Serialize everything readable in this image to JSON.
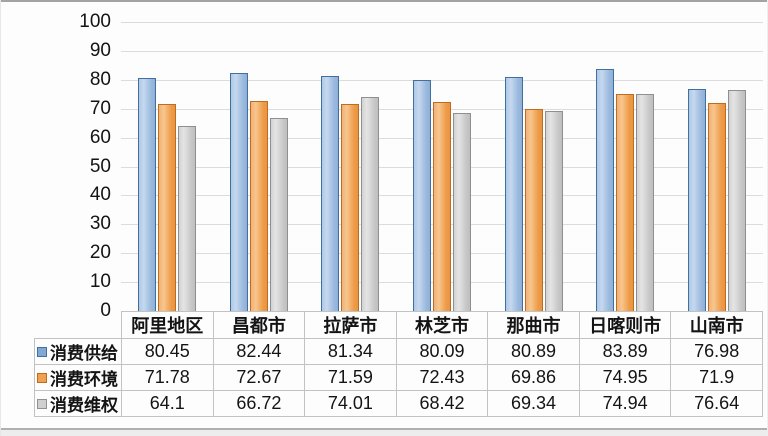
{
  "chart_data": {
    "type": "bar",
    "title": "",
    "categories": [
      "阿里地区",
      "昌都市",
      "拉萨市",
      "林芝市",
      "那曲市",
      "日喀则市",
      "山南市"
    ],
    "series": [
      {
        "name": "消费供给",
        "fill": "#7fa8d2",
        "border": "#41709f",
        "values": [
          80.45,
          82.44,
          81.34,
          80.09,
          80.89,
          83.89,
          76.98
        ]
      },
      {
        "name": "消费环境",
        "fill": "#f0a04e",
        "border": "#bc6d21",
        "values": [
          71.78,
          72.67,
          71.59,
          72.43,
          69.86,
          74.95,
          71.9
        ]
      },
      {
        "name": "消费维权",
        "fill": "#cfcfcf",
        "border": "#8f8f8f",
        "values": [
          64.1,
          66.72,
          74.01,
          68.42,
          69.34,
          74.94,
          76.64
        ]
      }
    ],
    "ylim": [
      0,
      100
    ],
    "ytick_step": 10,
    "yticks": [
      "100",
      "90",
      "80",
      "70",
      "60",
      "50",
      "40",
      "30",
      "20",
      "10",
      "0"
    ],
    "grid": "horizontal",
    "legend_position": "table-left-column",
    "data_table_shown": true
  }
}
